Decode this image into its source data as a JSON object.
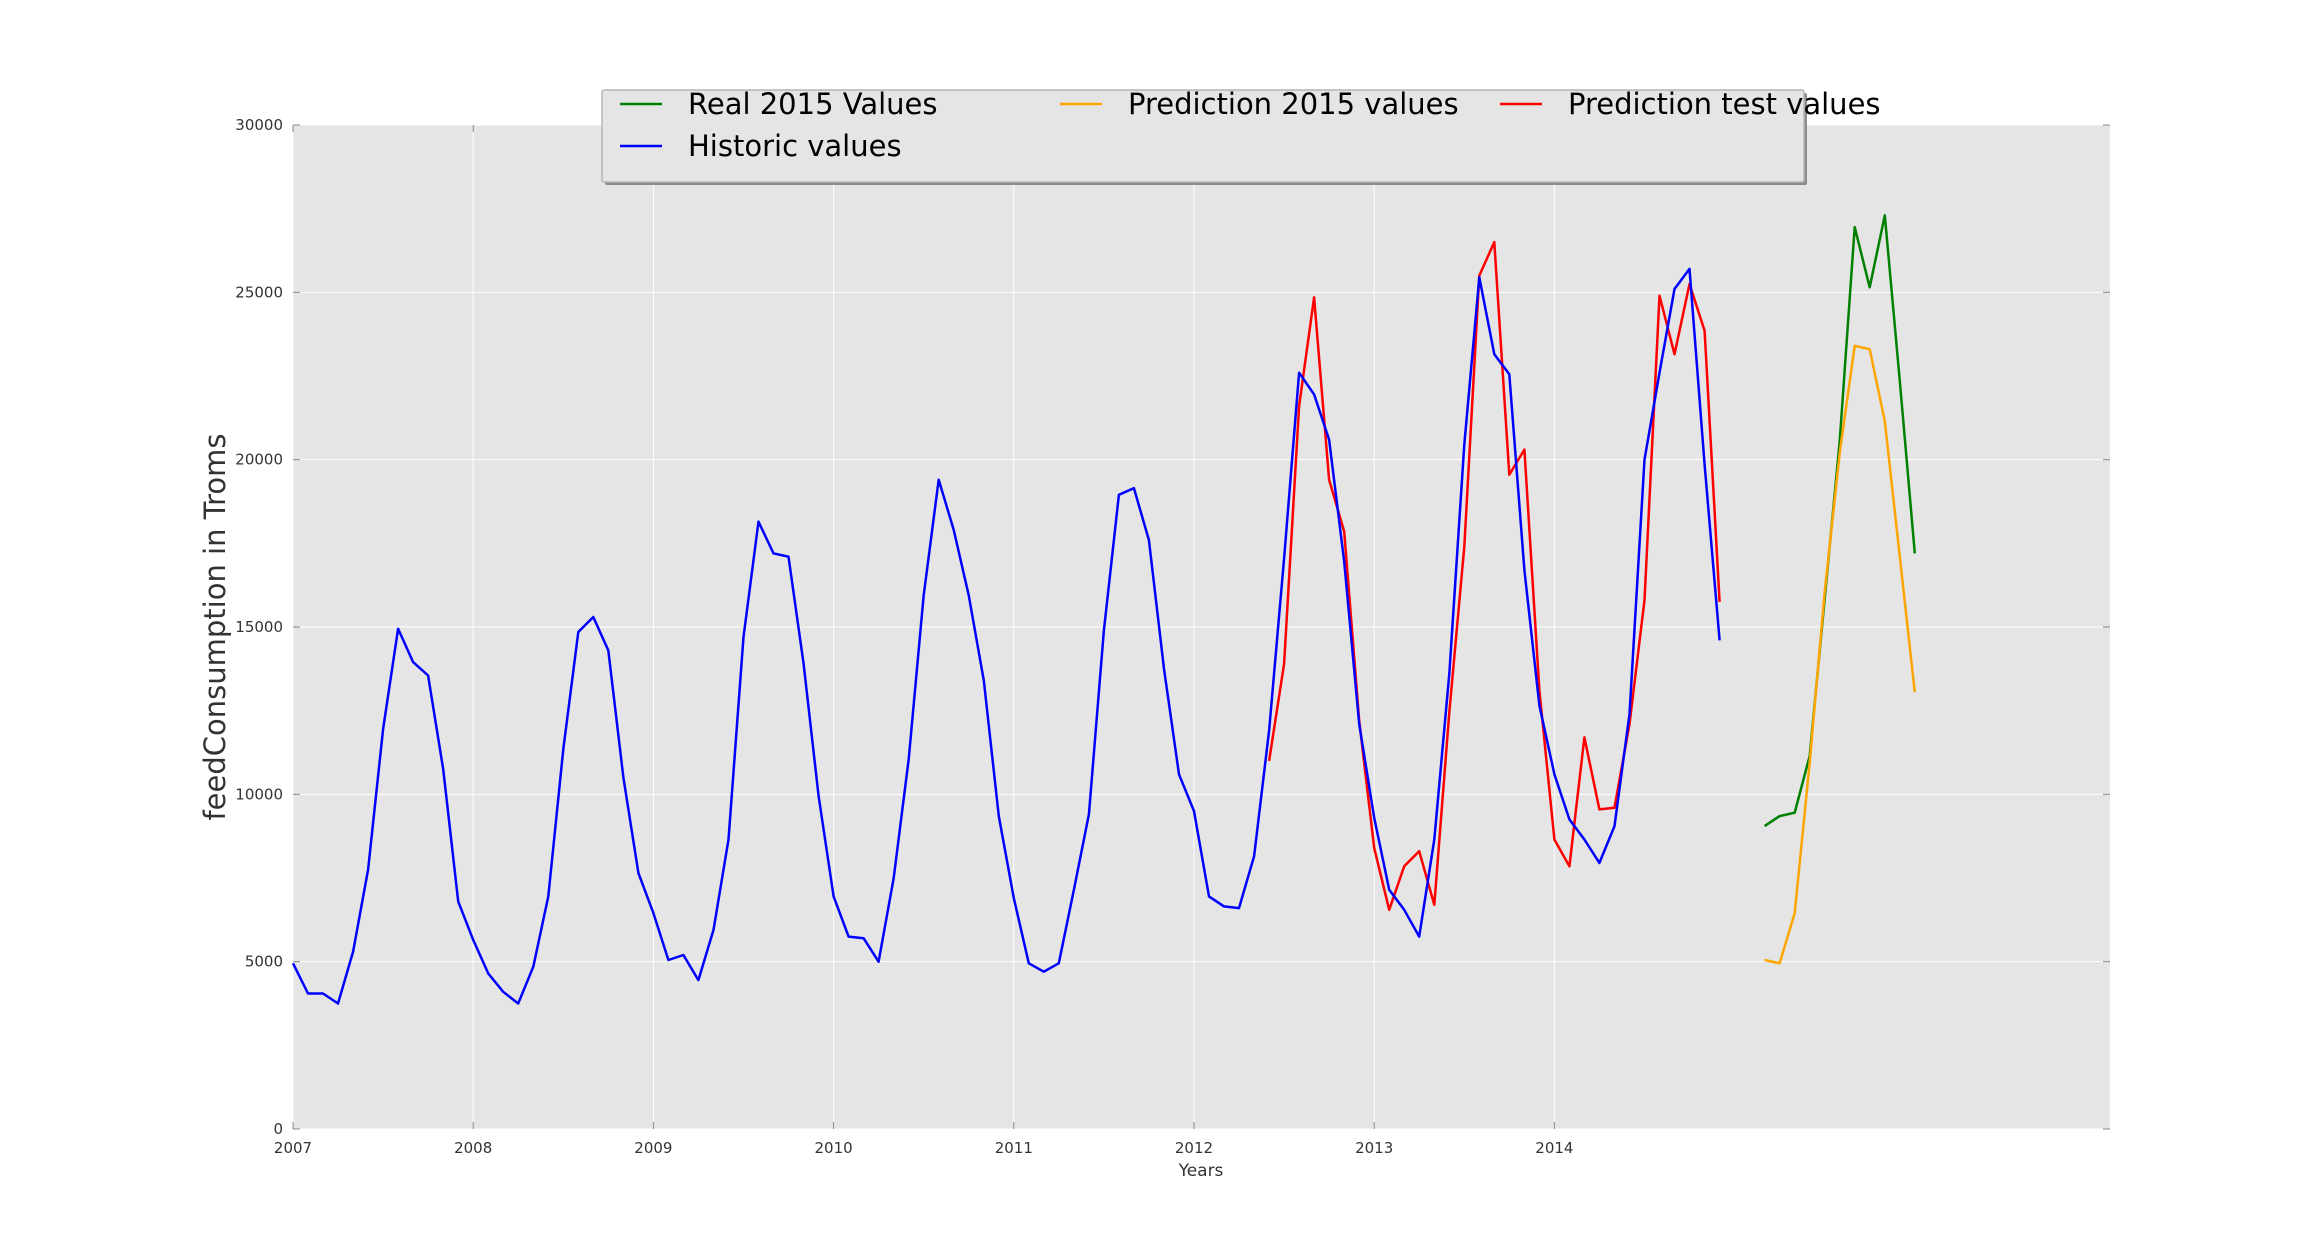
{
  "chart_data": {
    "type": "line",
    "title": "",
    "xlabel": "Years",
    "ylabel": "feedConsumption in Troms",
    "xlim": [
      0,
      121
    ],
    "ylim": [
      0,
      30000
    ],
    "x_ticks": [
      {
        "label": "2007",
        "x": 0
      },
      {
        "label": "2008",
        "x": 12
      },
      {
        "label": "2009",
        "x": 24
      },
      {
        "label": "2010",
        "x": 36
      },
      {
        "label": "2011",
        "x": 48
      },
      {
        "label": "2012",
        "x": 60
      },
      {
        "label": "2013",
        "x": 72
      },
      {
        "label": "2014",
        "x": 84
      }
    ],
    "y_ticks": [
      0,
      5000,
      10000,
      15000,
      20000,
      25000,
      30000
    ],
    "grid": true,
    "legend": {
      "placement": "top-center",
      "columns": 3
    },
    "series": [
      {
        "name": "Real 2015 Values",
        "color": "#008000",
        "x": [
          98,
          99,
          100,
          101,
          102,
          103,
          104,
          105,
          106,
          107,
          108,
          109
        ],
        "values": [
          9050,
          9350,
          9450,
          11150,
          15850,
          20550,
          26950,
          25150,
          27300,
          22350,
          17200,
          null
        ]
      },
      {
        "name": "Prediction 2015 values",
        "color": "#ffa500",
        "x": [
          98,
          99,
          100,
          101,
          102,
          103,
          104,
          105,
          106,
          107,
          108
        ],
        "values": [
          5050,
          4950,
          6450,
          10950,
          16050,
          20200,
          23400,
          23300,
          21150,
          17100,
          13050
        ]
      },
      {
        "name": "Prediction test values",
        "color": "#ff0000",
        "x": [
          65,
          66,
          67,
          68,
          69,
          70,
          71,
          72,
          73,
          74,
          75,
          76,
          77,
          78,
          79,
          80,
          81,
          82,
          83,
          84,
          85,
          86,
          87,
          88,
          89,
          90,
          91,
          92,
          93,
          94,
          95
        ],
        "values": [
          11000,
          13900,
          21600,
          24850,
          19400,
          17850,
          12200,
          8400,
          6550,
          7850,
          8300,
          6700,
          12450,
          17400,
          25500,
          26500,
          19550,
          20300,
          13100,
          8650,
          7850,
          11700,
          9550,
          9600,
          12100,
          15800,
          24900,
          23150,
          25250,
          23850,
          15750
        ]
      },
      {
        "name": "Historic values",
        "color": "#0000ff",
        "x": [
          0,
          1,
          2,
          3,
          4,
          5,
          6,
          7,
          8,
          9,
          10,
          11,
          12,
          13,
          14,
          15,
          16,
          17,
          18,
          19,
          20,
          21,
          22,
          23,
          24,
          25,
          26,
          27,
          28,
          29,
          30,
          31,
          32,
          33,
          34,
          35,
          36,
          37,
          38,
          39,
          40,
          41,
          42,
          43,
          44,
          45,
          46,
          47,
          48,
          49,
          50,
          51,
          52,
          53,
          54,
          55,
          56,
          57,
          58,
          59,
          60,
          61,
          62,
          63,
          64,
          65,
          66,
          67,
          68,
          69,
          70,
          71,
          72,
          73,
          74,
          75,
          76,
          77,
          78,
          79,
          80,
          81,
          82,
          83,
          84,
          85,
          86,
          87,
          88,
          89,
          90,
          91,
          92,
          93,
          94,
          95
        ],
        "values": [
          4950,
          4050,
          4050,
          3750,
          5300,
          7750,
          11950,
          14950,
          13950,
          13550,
          10750,
          6800,
          5650,
          4650,
          4100,
          3750,
          4850,
          6950,
          11350,
          14850,
          15300,
          14300,
          10500,
          7650,
          6450,
          5050,
          5200,
          4450,
          5950,
          8650,
          14700,
          18150,
          17200,
          17100,
          13900,
          9950,
          6950,
          5750,
          5700,
          5000,
          7500,
          11050,
          15950,
          19400,
          17900,
          15950,
          13400,
          9350,
          6900,
          4950,
          4700,
          4950,
          7150,
          9400,
          14900,
          18950,
          19150,
          17600,
          13750,
          10600,
          9500,
          6950,
          6650,
          6600,
          8150,
          11900,
          17050,
          22600,
          21950,
          20600,
          16950,
          12100,
          9300,
          7150,
          6550,
          5750,
          8650,
          13600,
          20450,
          25450,
          23150,
          22550,
          16700,
          12650,
          10600,
          9250,
          8650,
          7950,
          9050,
          12400,
          20000,
          22600,
          25100,
          25700,
          19850,
          14600
        ]
      }
    ]
  }
}
